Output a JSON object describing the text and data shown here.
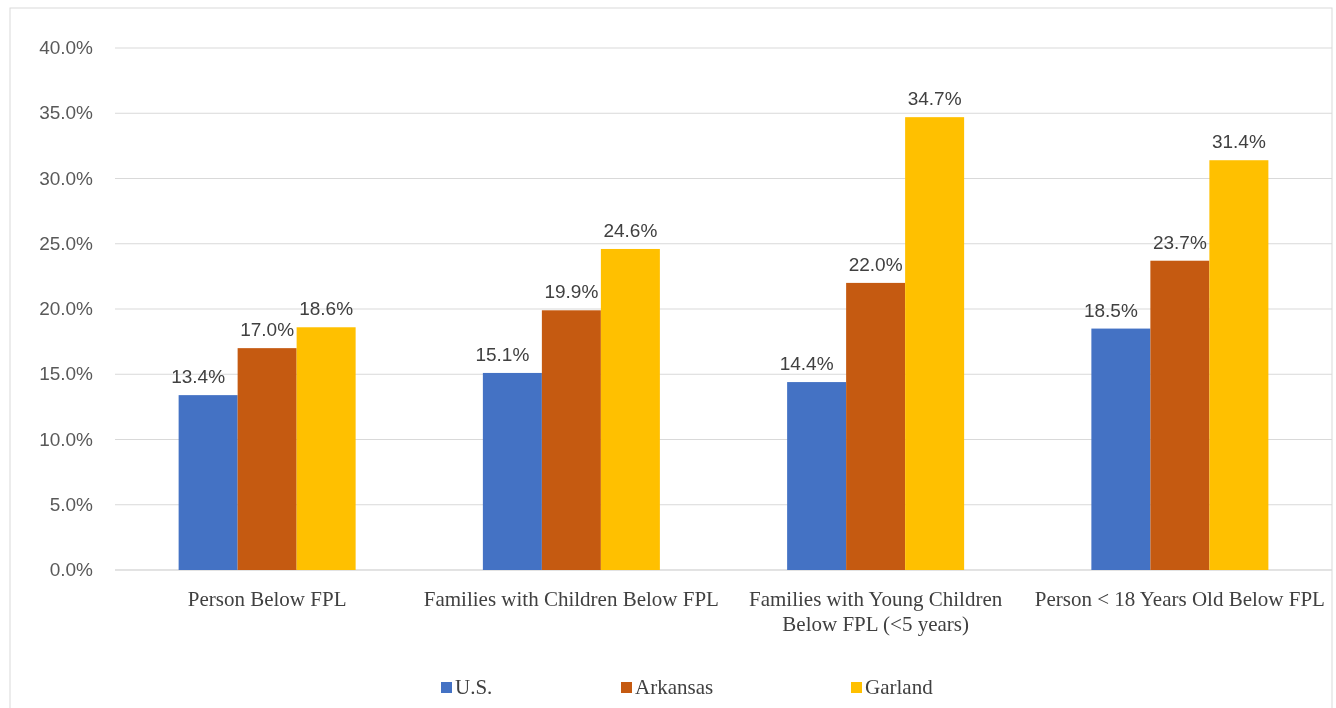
{
  "chart_data": {
    "type": "bar",
    "categories": [
      "Person Below FPL",
      "Families with Children Below FPL",
      "Families with Young Children Below FPL (<5 years)",
      "Person < 18 Years Old Below FPL"
    ],
    "series": [
      {
        "name": "U.S.",
        "color": "#4472c4",
        "values": [
          13.4,
          15.1,
          14.4,
          18.5
        ],
        "value_labels": [
          "13.4%",
          "15.1%",
          "14.4%",
          "18.5%"
        ]
      },
      {
        "name": "Arkansas",
        "color": "#c55a11",
        "values": [
          17.0,
          19.9,
          22.0,
          23.7
        ],
        "value_labels": [
          "17.0%",
          "19.9%",
          "22.0%",
          "23.7%"
        ]
      },
      {
        "name": "Garland",
        "color": "#ffc000",
        "values": [
          18.6,
          24.6,
          34.7,
          31.4
        ],
        "value_labels": [
          "18.6%",
          "24.6%",
          "34.7%",
          "31.4%"
        ]
      }
    ],
    "ylim": [
      0,
      40
    ],
    "yticks": [
      {
        "value": 0,
        "label": "0.0%"
      },
      {
        "value": 5,
        "label": "5.0%"
      },
      {
        "value": 10,
        "label": "10.0%"
      },
      {
        "value": 15,
        "label": "15.0%"
      },
      {
        "value": 20,
        "label": "20.0%"
      },
      {
        "value": 25,
        "label": "25.0%"
      },
      {
        "value": 30,
        "label": "30.0%"
      },
      {
        "value": 35,
        "label": "35.0%"
      },
      {
        "value": 40,
        "label": "40.0%"
      }
    ],
    "grid": "y",
    "legend": "bottom"
  }
}
